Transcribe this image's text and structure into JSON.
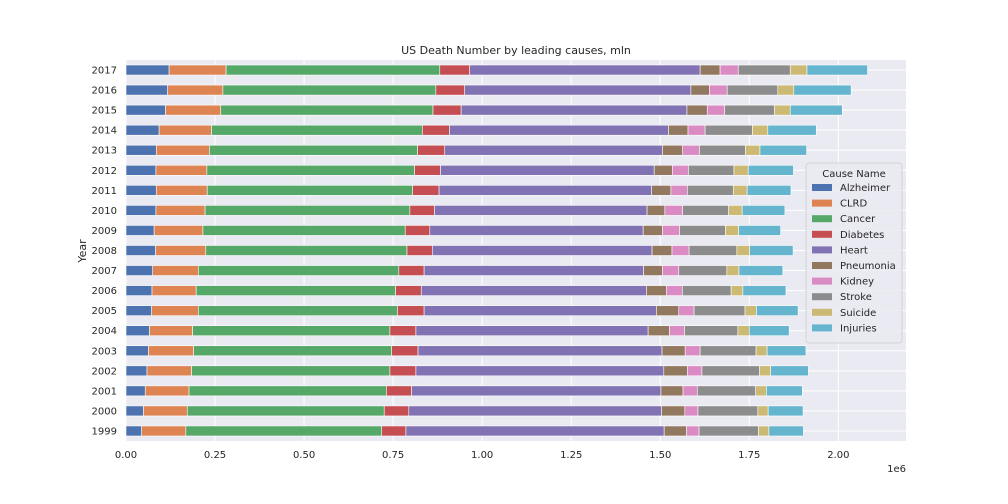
{
  "chart_data": {
    "type": "bar",
    "orientation": "horizontal",
    "stacked": true,
    "title": "US Death Number by leading causes, mln",
    "xlabel": "",
    "ylabel": "Year",
    "x_offset_label": "1e6",
    "xlim": [
      0,
      2190000
    ],
    "xticks": [
      0,
      250000,
      500000,
      750000,
      1000000,
      1250000,
      1500000,
      1750000,
      2000000
    ],
    "xtick_labels": [
      "0.00",
      "0.25",
      "0.50",
      "0.75",
      "1.00",
      "1.25",
      "1.50",
      "1.75",
      "2.00"
    ],
    "grid": true,
    "legend_position": "center-right",
    "legend_title": "Cause Name",
    "categories": [
      "1999",
      "2000",
      "2001",
      "2002",
      "2003",
      "2004",
      "2005",
      "2006",
      "2007",
      "2008",
      "2009",
      "2010",
      "2011",
      "2012",
      "2013",
      "2014",
      "2015",
      "2016",
      "2017"
    ],
    "series": [
      {
        "name": "Alzheimer",
        "color": "#4c72b0",
        "values": [
          44000,
          49000,
          54000,
          59000,
          63000,
          66000,
          72000,
          73000,
          75000,
          83000,
          79000,
          84000,
          85000,
          84000,
          85000,
          93000,
          111000,
          117000,
          121000
        ]
      },
      {
        "name": "CLRD",
        "color": "#dd8452",
        "values": [
          124000,
          123000,
          123000,
          125000,
          127000,
          121000,
          131000,
          124000,
          128000,
          141000,
          137000,
          138000,
          143000,
          143000,
          149000,
          147000,
          155000,
          155000,
          160000
        ]
      },
      {
        "name": "Cancer",
        "color": "#55a868",
        "values": [
          550000,
          553000,
          554000,
          557000,
          556000,
          554000,
          559000,
          560000,
          563000,
          565000,
          568000,
          575000,
          577000,
          583000,
          585000,
          592000,
          596000,
          598000,
          600000
        ]
      },
      {
        "name": "Diabetes",
        "color": "#c44e52",
        "values": [
          68000,
          69000,
          71000,
          73000,
          74000,
          73000,
          75000,
          72000,
          71000,
          71000,
          69000,
          69000,
          74000,
          73000,
          76000,
          76000,
          79000,
          81000,
          84000
        ]
      },
      {
        "name": "Heart",
        "color": "#8172b3",
        "values": [
          725000,
          710000,
          700000,
          696000,
          685000,
          652000,
          652000,
          632000,
          616000,
          617000,
          599000,
          597000,
          597000,
          600000,
          611000,
          615000,
          634000,
          635000,
          647000
        ]
      },
      {
        "name": "Pneumonia",
        "color": "#937860",
        "values": [
          63000,
          65000,
          62000,
          66000,
          65000,
          60000,
          63000,
          56000,
          53000,
          56000,
          54000,
          50000,
          54000,
          51000,
          57000,
          55000,
          57000,
          52000,
          56000
        ]
      },
      {
        "name": "Kidney",
        "color": "#da8bc3",
        "values": [
          35000,
          37000,
          40000,
          41000,
          42000,
          42000,
          43000,
          45000,
          46000,
          48000,
          48000,
          50000,
          46000,
          45000,
          47000,
          48000,
          49000,
          50000,
          51000
        ]
      },
      {
        "name": "Stroke",
        "color": "#8c8c8c",
        "values": [
          167000,
          168000,
          164000,
          162000,
          157000,
          150000,
          143000,
          137000,
          135000,
          134000,
          129000,
          129000,
          129000,
          128000,
          129000,
          133000,
          140000,
          142000,
          146000
        ]
      },
      {
        "name": "Suicide",
        "color": "#ccb974",
        "values": [
          29000,
          29000,
          30000,
          31000,
          31000,
          32000,
          32000,
          33000,
          34000,
          36000,
          37000,
          38000,
          39000,
          40000,
          41000,
          43000,
          44000,
          45000,
          47000
        ]
      },
      {
        "name": "Injuries",
        "color": "#64b5cd",
        "values": [
          97000,
          98000,
          101000,
          106000,
          109000,
          112000,
          117000,
          121000,
          123000,
          122000,
          118000,
          120000,
          123000,
          127000,
          131000,
          136000,
          146000,
          161000,
          170000
        ]
      }
    ]
  }
}
